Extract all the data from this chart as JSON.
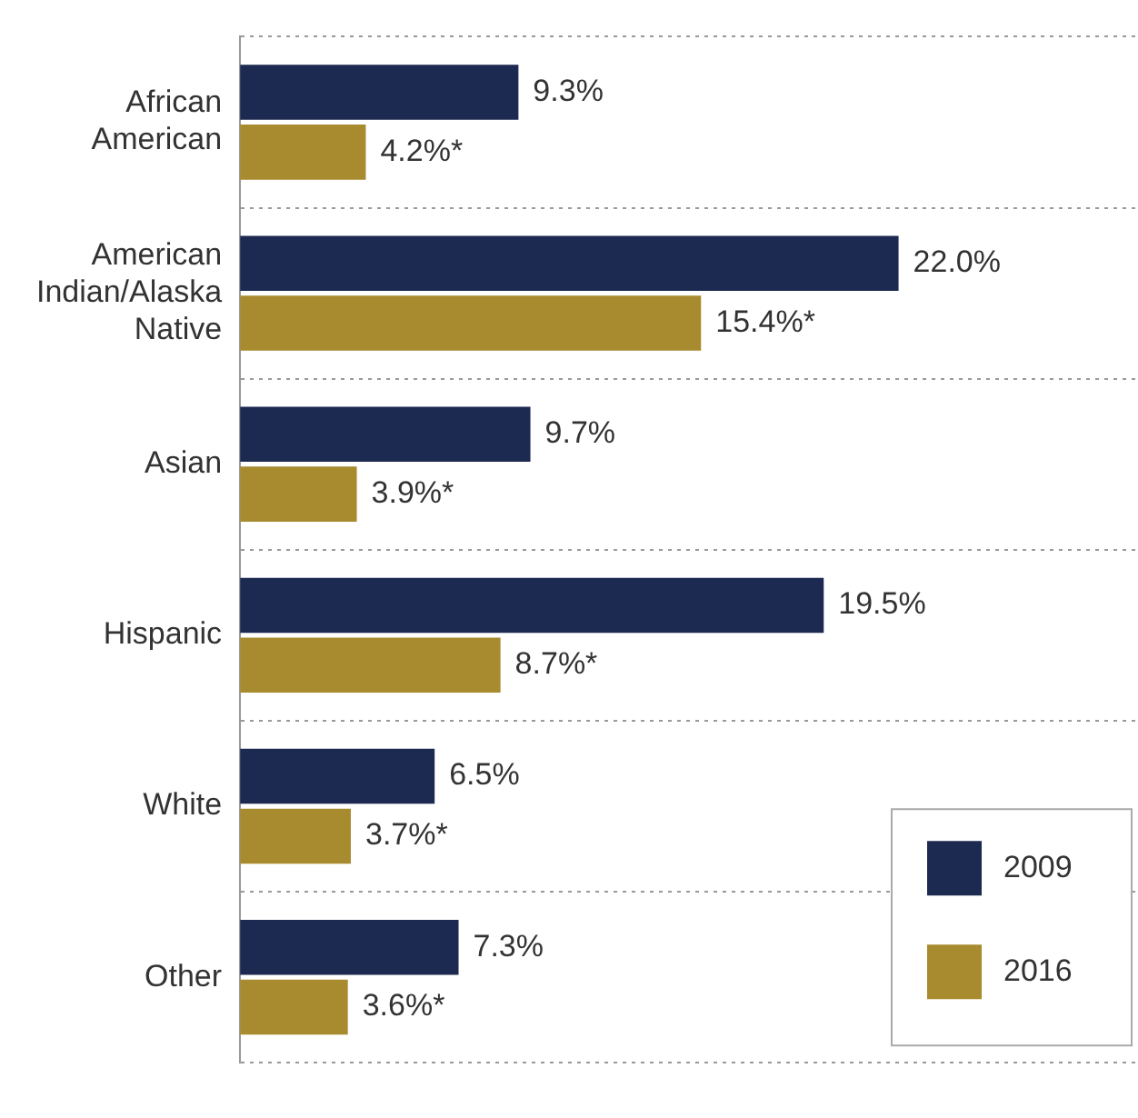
{
  "chart_data": {
    "type": "bar",
    "orientation": "horizontal",
    "categories": [
      "African American",
      "American Indian/Alaska Native",
      "Asian",
      "Hispanic",
      "White",
      "Other"
    ],
    "series": [
      {
        "name": "2009",
        "color": "#1c2951",
        "values": [
          9.3,
          22.0,
          9.7,
          19.5,
          6.5,
          7.3
        ],
        "value_labels": [
          "9.3%",
          "22.0%",
          "9.7%",
          "19.5%",
          "6.5%",
          "7.3%"
        ]
      },
      {
        "name": "2016",
        "color": "#a88a2f",
        "values": [
          4.2,
          15.4,
          3.9,
          8.7,
          3.7,
          3.6
        ],
        "value_labels": [
          "4.2%*",
          "15.4%*",
          "3.9%*",
          "8.7%*",
          "3.7%*",
          "3.6%*"
        ]
      }
    ],
    "xlim": [
      0,
      30
    ],
    "tick_labels": "y",
    "grid": "y",
    "legend": "bottom right"
  }
}
